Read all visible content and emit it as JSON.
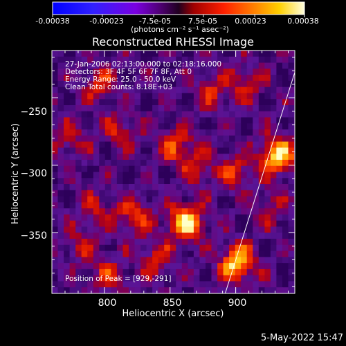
{
  "colorbar": {
    "tick_labels": [
      "-0.00038",
      "-0.00023",
      "-7.5e-05",
      "7.5e-05",
      "0.00023",
      "0.00038"
    ],
    "tick_values": [
      -0.00038,
      -0.00023,
      -7.5e-05,
      7.5e-05,
      0.00023,
      0.00038
    ],
    "range": [
      -0.00038,
      0.00038
    ],
    "unit_label": "(photons cm⁻² s⁻¹ asec⁻²)"
  },
  "chart_data": {
    "type": "heatmap",
    "title": "Reconstructed RHESSI Image",
    "xlabel": "Heliocentric X (arcsec)",
    "ylabel": "Heliocentric Y (arcsec)",
    "xlim": [
      760,
      945
    ],
    "ylim": [
      -395,
      -215
    ],
    "xticks": [
      800,
      850,
      900
    ],
    "xtick_labels": [
      "800",
      "850",
      "900"
    ],
    "yticks": [
      -250,
      -300,
      -350
    ],
    "ytick_labels": [
      "−250",
      "−300",
      "−350"
    ],
    "grid": false,
    "info_lines": [
      "27-Jan-2006 02:13:00.000 to 02:18:16.000",
      "Detectors: 3F 4F 5F 6F 7F 8F, Att 0",
      "Energy Range: 25.0 - 50.0 keV",
      "Clean    Total counts: 8.18E+03"
    ],
    "peak_label": "Position of Peak = [929,-291]",
    "peak": [
      929,
      -291
    ],
    "sources": [
      {
        "x": 860,
        "y": -340,
        "level": 0.95
      },
      {
        "x": 929,
        "y": -291,
        "level": 1.0
      },
      {
        "x": 899,
        "y": -370,
        "level": 0.95
      },
      {
        "x": 852,
        "y": -283,
        "level": 0.55
      },
      {
        "x": 794,
        "y": -237,
        "level": 0.45
      },
      {
        "x": 810,
        "y": -272,
        "level": 0.45
      },
      {
        "x": 770,
        "y": -278,
        "level": 0.4
      },
      {
        "x": 820,
        "y": -336,
        "level": 0.55
      },
      {
        "x": 838,
        "y": -368,
        "level": 0.45
      },
      {
        "x": 905,
        "y": -237,
        "level": 0.4
      },
      {
        "x": 880,
        "y": -242,
        "level": 0.4
      },
      {
        "x": 898,
        "y": -303,
        "level": 0.45
      },
      {
        "x": 925,
        "y": -330,
        "level": 0.35
      },
      {
        "x": 790,
        "y": -330,
        "level": 0.35
      },
      {
        "x": 800,
        "y": -380,
        "level": 0.45
      },
      {
        "x": 870,
        "y": -300,
        "level": 0.4
      },
      {
        "x": 780,
        "y": -357,
        "level": 0.35
      }
    ],
    "limb_line": {
      "x": [
        892,
        947
      ],
      "y": [
        -395,
        -225
      ]
    }
  },
  "footer": {
    "date": "5-May-2022 15:47"
  }
}
